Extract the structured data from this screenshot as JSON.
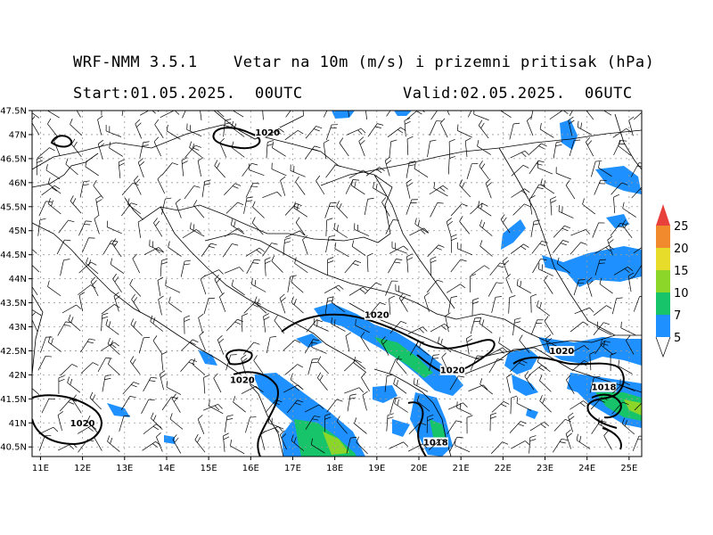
{
  "header": {
    "model": "WRF-NMM 3.5.1",
    "product": "Vetar na 10m (m/s) i prizemni pritisak (hPa)",
    "start": "Start:01.05.2025.  00UTC",
    "valid": "Valid:02.05.2025.  06UTC"
  },
  "map": {
    "lon_labels": [
      "11E",
      "12E",
      "13E",
      "14E",
      "15E",
      "16E",
      "17E",
      "18E",
      "19E",
      "20E",
      "21E",
      "22E",
      "23E",
      "24E",
      "25E"
    ],
    "lat_labels": [
      "47.5N",
      "47N",
      "46.5N",
      "46N",
      "45.5N",
      "45N",
      "44.5N",
      "44N",
      "43.5N",
      "43N",
      "42.5N",
      "42N",
      "41.5N",
      "41N",
      "40.5N"
    ],
    "lon_range": [
      10.8,
      25.3
    ],
    "lat_range": [
      40.3,
      47.5
    ],
    "grid": true,
    "isobars": [
      {
        "label": "1020",
        "lon": 16.4,
        "lat": 47.0
      },
      {
        "label": "1020",
        "lon": 19.0,
        "lat": 43.2
      },
      {
        "label": "1020",
        "lon": 15.8,
        "lat": 41.85
      },
      {
        "label": "1020",
        "lon": 12.0,
        "lat": 40.95
      },
      {
        "label": "1020",
        "lon": 20.8,
        "lat": 42.05
      },
      {
        "label": "1020",
        "lon": 23.4,
        "lat": 42.45
      },
      {
        "label": "1018",
        "lon": 24.4,
        "lat": 41.7
      },
      {
        "label": "1018",
        "lon": 20.4,
        "lat": 40.55
      }
    ]
  },
  "colorbar": {
    "levels": [
      "5",
      "7",
      "10",
      "15",
      "20",
      "25"
    ],
    "colors": [
      "#1e90ff",
      "#17c46a",
      "#8cd629",
      "#e8dc2a",
      "#f08a2c",
      "#e8403a"
    ]
  },
  "wind_colors": {
    "5-7": "#1e90ff",
    "7-10": "#17c46a",
    "10-15": "#8cd629"
  }
}
